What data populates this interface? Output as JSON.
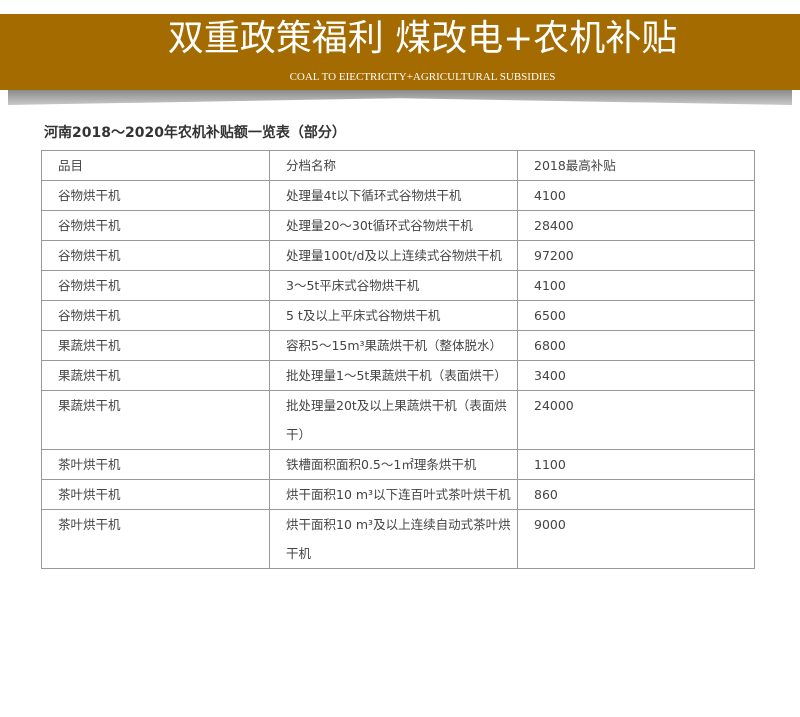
{
  "banner": {
    "title": "双重政策福利  煤改电+农机补贴",
    "subtitle": "COAL TO EIECTRICITY+AGRICULTURAL SUBSIDIES",
    "color": "#a36b00"
  },
  "table": {
    "title": "河南2018～2020年农机补贴额一览表（部分）",
    "headers": [
      "品目",
      "分档名称",
      "2018最高补贴"
    ],
    "rows": [
      [
        "谷物烘干机",
        "处理量4t以下循环式谷物烘干机",
        "4100"
      ],
      [
        "谷物烘干机",
        "处理量20～30t循环式谷物烘干机",
        "28400"
      ],
      [
        "谷物烘干机",
        "处理量100t/d及以上连续式谷物烘干机",
        "97200"
      ],
      [
        "谷物烘干机",
        "3～5t平床式谷物烘干机",
        "4100"
      ],
      [
        "谷物烘干机",
        "5 t及以上平床式谷物烘干机",
        "6500"
      ],
      [
        "果蔬烘干机",
        "容积5～15m³果蔬烘干机（整体脱水）",
        "6800"
      ],
      [
        "果蔬烘干机",
        "批处理量1～5t果蔬烘干机（表面烘干）",
        "3400"
      ],
      [
        "果蔬烘干机",
        "批处理量20t及以上果蔬烘干机（表面烘干）",
        "24000"
      ],
      [
        "茶叶烘干机",
        "铁槽面积面积0.5～1㎡理条烘干机",
        "1100"
      ],
      [
        "茶叶烘干机",
        "烘干面积10 m³以下连百叶式茶叶烘干机",
        "860"
      ],
      [
        "茶叶烘干机",
        "烘干面积10 m³及以上连续自动式茶叶烘干机",
        "9000"
      ]
    ]
  }
}
